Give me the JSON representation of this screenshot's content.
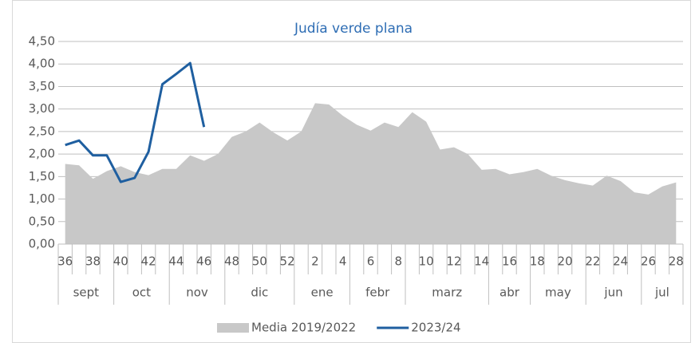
{
  "chart_data": {
    "type": "area_line",
    "title": "Judía verde plana",
    "categories": [
      "36",
      null,
      "38",
      null,
      "40",
      null,
      "42",
      null,
      "44",
      null,
      "46",
      null,
      "48",
      null,
      "50",
      null,
      "52",
      null,
      "2",
      null,
      "4",
      null,
      "6",
      null,
      "8",
      null,
      "10",
      null,
      "12",
      null,
      "14",
      null,
      "16",
      null,
      "18",
      null,
      "20",
      null,
      "22",
      null,
      "24",
      null,
      "26",
      null,
      "28"
    ],
    "x_groups": [
      {
        "label": "sept",
        "categories": 4
      },
      {
        "label": "oct",
        "categories": 4
      },
      {
        "label": "nov",
        "categories": 4
      },
      {
        "label": "dic",
        "categories": 5
      },
      {
        "label": "ene",
        "categories": 4
      },
      {
        "label": "febr",
        "categories": 4
      },
      {
        "label": "marz",
        "categories": 6
      },
      {
        "label": "abr",
        "categories": 3
      },
      {
        "label": "may",
        "categories": 4
      },
      {
        "label": "jun",
        "categories": 4
      },
      {
        "label": "jul",
        "categories": 3
      }
    ],
    "series": [
      {
        "name": "Media 2019/2022",
        "kind": "area",
        "color": "#c8c8c8",
        "values": [
          1.78,
          1.75,
          1.45,
          1.62,
          1.73,
          1.6,
          1.53,
          1.67,
          1.67,
          1.97,
          1.85,
          2.0,
          2.38,
          2.5,
          2.7,
          2.48,
          2.3,
          2.5,
          3.13,
          3.1,
          2.85,
          2.65,
          2.52,
          2.7,
          2.6,
          2.93,
          2.72,
          2.1,
          2.15,
          2.0,
          1.65,
          1.67,
          1.55,
          1.6,
          1.67,
          1.52,
          1.42,
          1.35,
          1.3,
          1.52,
          1.4,
          1.15,
          1.1,
          1.28,
          1.37
        ]
      },
      {
        "name": "2023/24",
        "kind": "line",
        "color": "#1f5fa0",
        "values": [
          2.2,
          2.3,
          1.97,
          1.97,
          1.38,
          1.47,
          2.05,
          3.55,
          3.78,
          4.02,
          2.6,
          null,
          null,
          null,
          null,
          null,
          null,
          null,
          null,
          null,
          null,
          null,
          null,
          null,
          null,
          null,
          null,
          null,
          null,
          null,
          null,
          null,
          null,
          null,
          null,
          null,
          null,
          null,
          null,
          null,
          null,
          null,
          null,
          null,
          null
        ]
      }
    ],
    "ylim": [
      0,
      4.5
    ],
    "yticks": [
      {
        "value": 0,
        "label": "0,00"
      },
      {
        "value": 0.5,
        "label": "0,50"
      },
      {
        "value": 1,
        "label": "1,00"
      },
      {
        "value": 1.5,
        "label": "1,50"
      },
      {
        "value": 2,
        "label": "2,00"
      },
      {
        "value": 2.5,
        "label": "2,50"
      },
      {
        "value": 3,
        "label": "3,00"
      },
      {
        "value": 3.5,
        "label": "3,50"
      },
      {
        "value": 4,
        "label": "4,00"
      },
      {
        "value": 4.5,
        "label": "4,50"
      }
    ],
    "grid": true,
    "legend": "bottom"
  }
}
